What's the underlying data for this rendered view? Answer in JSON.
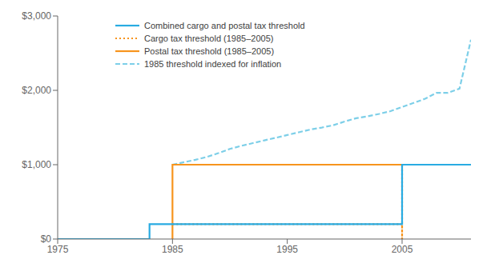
{
  "chart_data": {
    "type": "line",
    "xlim": [
      1975,
      2011
    ],
    "xticks": [
      1975,
      1985,
      1995,
      2005
    ],
    "ylim": [
      0,
      3000
    ],
    "yticks": [
      {
        "value": 0,
        "label": "$0"
      },
      {
        "value": 1000,
        "label": "$1,000"
      },
      {
        "value": 2000,
        "label": "$2,000"
      },
      {
        "value": 3000,
        "label": "$3,000"
      }
    ],
    "grid": false,
    "legend": "upper left",
    "series": [
      {
        "name": "Combined cargo and postal tax threshold",
        "color": "#29ABE2",
        "line_style": "solid",
        "x": [
          1975,
          1983,
          1983,
          2005,
          2005,
          2011
        ],
        "values": [
          0,
          0,
          200,
          200,
          1000,
          1000
        ]
      },
      {
        "name": "Cargo tax threshold (1985–2005)",
        "color": "#F7941D",
        "line_style": "dotted",
        "x": [
          1985,
          2005,
          2005
        ],
        "values": [
          200,
          200,
          0
        ]
      },
      {
        "name": "Postal tax threshold (1985–2005)",
        "color": "#F7941D",
        "line_style": "solid",
        "x": [
          1985,
          1985,
          2005
        ],
        "values": [
          0,
          1000,
          1000
        ]
      },
      {
        "color": "#F7941D",
        "line_style": "dotted",
        "x": [
          2005,
          2005
        ],
        "values": [
          0,
          1000
        ]
      },
      {
        "name": "1985 threshold indexed for inflation",
        "color": "#7DCFE8",
        "line_style": "dashed",
        "x": [
          1985,
          1986,
          1987,
          1988,
          1989,
          1990,
          1991,
          1992,
          1993,
          1994,
          1995,
          1996,
          1997,
          1998,
          1999,
          2000,
          2001,
          2002,
          2003,
          2004,
          2005,
          2006,
          2007,
          2008,
          2009,
          2010,
          2011
        ],
        "values": [
          1000,
          1033,
          1066,
          1105,
          1155,
          1212,
          1253,
          1290,
          1327,
          1362,
          1399,
          1436,
          1472,
          1499,
          1530,
          1581,
          1625,
          1651,
          1683,
          1720,
          1776,
          1830,
          1887,
          1966,
          1966,
          2023,
          2680
        ]
      }
    ]
  }
}
